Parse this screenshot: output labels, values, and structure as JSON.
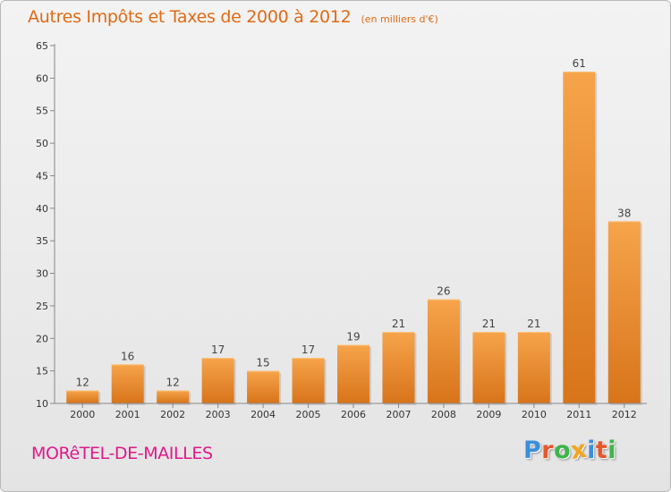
{
  "chart_data": {
    "type": "bar",
    "title": "Autres Impôts et Taxes de 2000 à 2012",
    "subtitle": "(en milliers d'€)",
    "categories": [
      "2000",
      "2001",
      "2002",
      "2003",
      "2004",
      "2005",
      "2006",
      "2007",
      "2008",
      "2009",
      "2010",
      "2011",
      "2012"
    ],
    "values": [
      12,
      16,
      12,
      17,
      15,
      17,
      19,
      21,
      26,
      21,
      21,
      61,
      38
    ],
    "ylim": [
      10,
      65
    ],
    "yticks": [
      10,
      15,
      20,
      25,
      30,
      35,
      40,
      45,
      50,
      55,
      60,
      65
    ],
    "grid": false,
    "data_labels": true,
    "bar_color": "#f0922e"
  },
  "commune": "MORêTEL-DE-MAILLES",
  "logo": {
    "letters": [
      "P",
      "r",
      "o",
      "x",
      "i",
      "t",
      "i"
    ],
    "colors": [
      "#3b8fd9",
      "#e5572c",
      "#3cb54a",
      "#f2a51f",
      "#3b8fd9",
      "#e5572c",
      "#3cb54a"
    ]
  },
  "colors": {
    "accent_title": "#e06a14",
    "commune": "#e0188a"
  }
}
